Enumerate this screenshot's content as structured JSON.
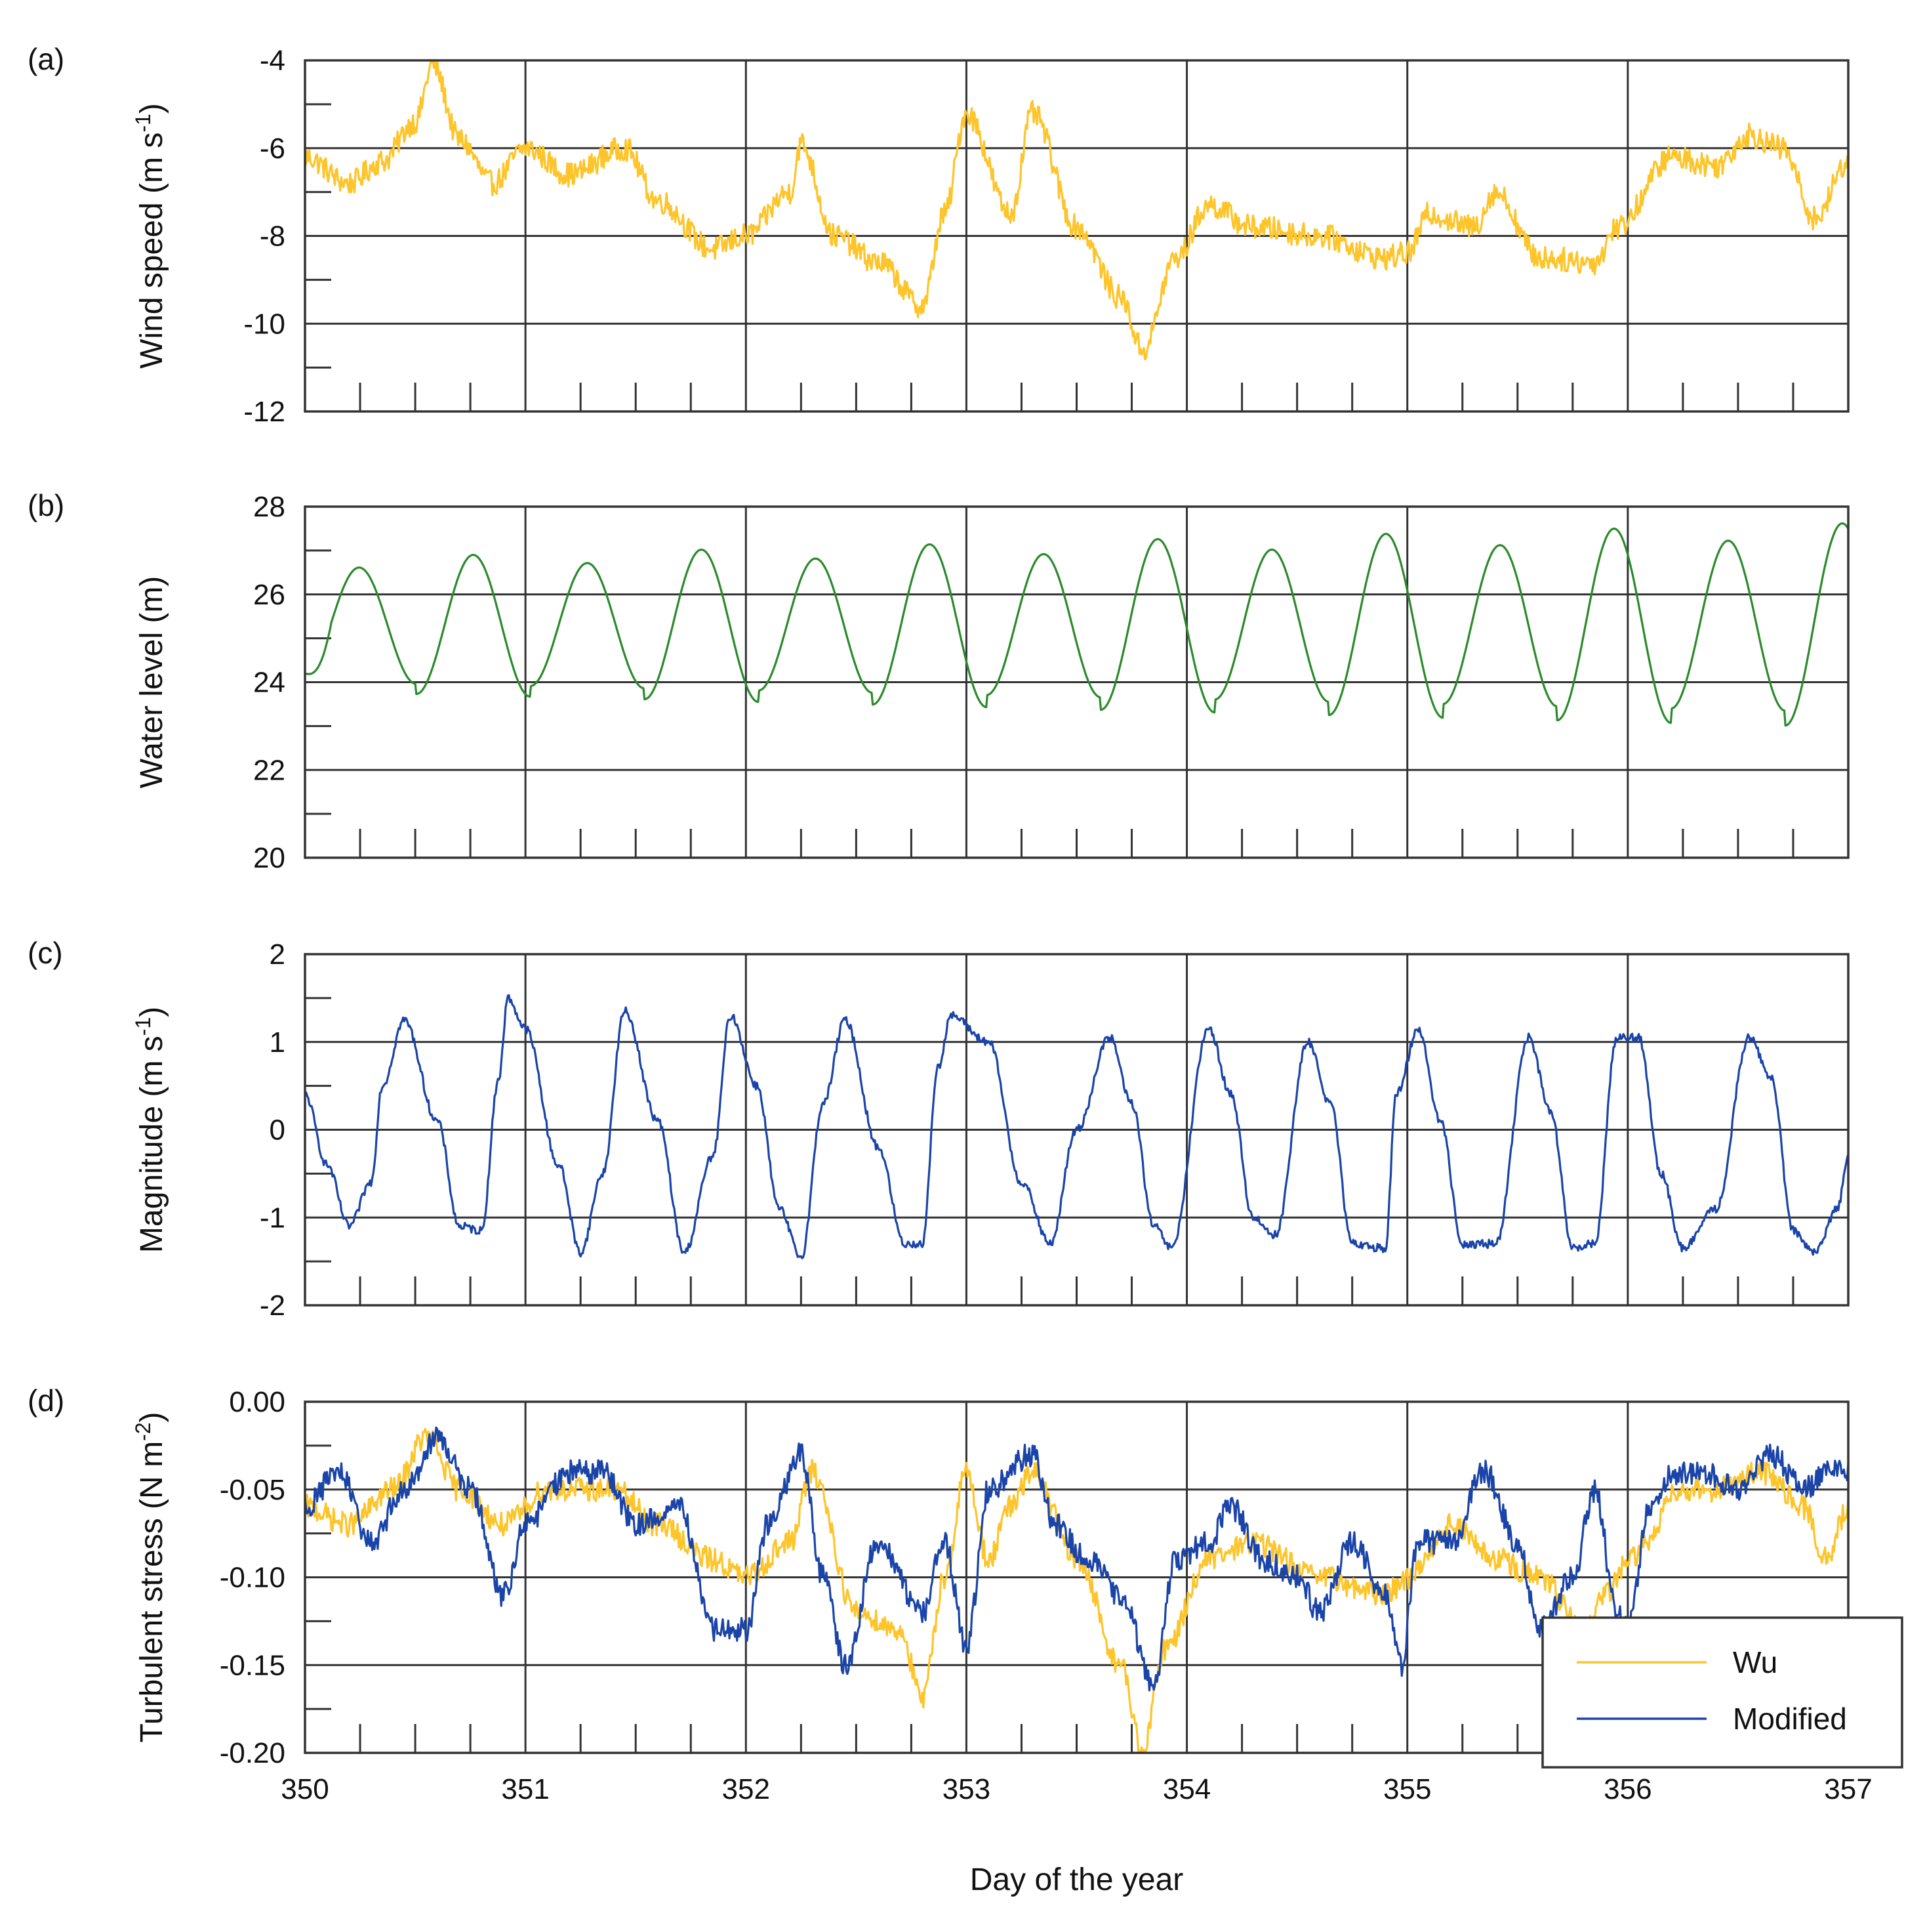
{
  "chart_data": [
    {
      "panel": "(a)",
      "type": "line",
      "ylabel_main": "Wind speed (m s",
      "ylabel_sup": "-1",
      "ylabel_end": ")",
      "ylim": [
        -12,
        -4
      ],
      "yticks": [
        -4,
        -6,
        -8,
        -10,
        -12
      ],
      "ytick_labels": [
        "-4",
        "-6",
        "-8",
        "-10",
        "-12"
      ],
      "series": [
        {
          "name": "Wind speed",
          "color": "#fdc52b",
          "x": [
            350.0,
            350.2,
            350.35,
            350.5,
            350.58,
            350.7,
            350.85,
            351.0,
            351.2,
            351.45,
            351.6,
            351.85,
            352.0,
            352.2,
            352.25,
            352.4,
            352.6,
            352.8,
            352.9,
            353.0,
            353.2,
            353.3,
            353.5,
            353.7,
            353.8,
            353.95,
            354.1,
            354.3,
            354.6,
            354.9,
            355.0,
            355.1,
            355.3,
            355.4,
            355.6,
            355.85,
            355.95,
            356.2,
            356.4,
            356.55,
            356.7,
            356.85,
            357.0
          ],
          "y": [
            -6.2,
            -6.8,
            -6.3,
            -5.4,
            -4.1,
            -5.8,
            -6.8,
            -6.0,
            -6.6,
            -6.0,
            -7.2,
            -8.3,
            -8.0,
            -7.0,
            -5.9,
            -8.0,
            -8.6,
            -9.6,
            -7.5,
            -5.2,
            -7.5,
            -5.2,
            -7.8,
            -9.4,
            -10.6,
            -8.5,
            -7.3,
            -7.8,
            -8.0,
            -8.5,
            -8.4,
            -7.5,
            -7.8,
            -7.0,
            -8.5,
            -8.6,
            -7.8,
            -6.2,
            -6.4,
            -5.7,
            -6.0,
            -7.6,
            -6.3
          ]
        }
      ]
    },
    {
      "panel": "(b)",
      "type": "line",
      "ylabel_main": "Water level (m)",
      "ylim": [
        20,
        28
      ],
      "yticks": [
        28,
        26,
        24,
        22,
        20
      ],
      "ytick_labels": [
        "28",
        "26",
        "24",
        "22",
        "20"
      ],
      "series": [
        {
          "name": "Water level",
          "color": "#2a8a2a",
          "tide": {
            "start_day": 350.0,
            "end_day": 357.0,
            "period_days": 0.5175,
            "phase_day": 350.245,
            "mean_start": 25.3,
            "mean_end": 25.3,
            "amplitude_start": 1.4,
            "amplitude_end": 2.15,
            "start_value": 24.2
          }
        }
      ]
    },
    {
      "panel": "(c)",
      "type": "line",
      "ylabel_main": "Magnitude (m s",
      "ylabel_sup": "-1",
      "ylabel_end": ")",
      "ylim": [
        -2,
        2
      ],
      "yticks": [
        2,
        1,
        0,
        -1,
        -2
      ],
      "ytick_labels": [
        "2",
        "1",
        "0",
        "-1",
        "-2"
      ],
      "series": [
        {
          "name": "Magnitude",
          "color": "#1a44a8",
          "x": [
            350.0,
            350.1,
            350.2,
            350.3,
            350.35,
            350.45,
            350.6,
            350.7,
            350.8,
            350.88,
            350.92,
            351.0,
            351.15,
            351.25,
            351.35,
            351.45,
            351.6,
            351.72,
            351.85,
            351.93,
            352.05,
            352.15,
            352.25,
            352.35,
            352.45,
            352.6,
            352.72,
            352.8,
            352.87,
            352.93,
            353.1,
            353.25,
            353.38,
            353.5,
            353.65,
            353.75,
            353.85,
            353.93,
            354.1,
            354.2,
            354.3,
            354.4,
            354.55,
            354.65,
            354.75,
            354.9,
            354.95,
            355.05,
            355.15,
            355.25,
            355.4,
            355.55,
            355.65,
            355.75,
            355.85,
            355.95,
            356.05,
            356.15,
            356.25,
            356.4,
            356.55,
            356.65,
            356.75,
            356.85,
            356.95,
            357.0
          ],
          "y": [
            0.4,
            -0.4,
            -1.1,
            -0.6,
            0.5,
            1.25,
            0.1,
            -1.1,
            -1.15,
            0.6,
            1.5,
            1.15,
            -0.4,
            -1.4,
            -0.5,
            1.35,
            0.1,
            -1.4,
            -0.3,
            1.3,
            0.5,
            -0.9,
            -1.45,
            0.3,
            1.25,
            -0.2,
            -1.3,
            -1.3,
            0.7,
            1.3,
            1.0,
            -0.6,
            -1.3,
            0.0,
            1.05,
            0.3,
            -1.1,
            -1.35,
            1.15,
            0.4,
            -1.0,
            -1.2,
            1.0,
            0.3,
            -1.3,
            -1.35,
            0.4,
            1.15,
            0.1,
            -1.3,
            -1.3,
            1.05,
            0.2,
            -1.35,
            -1.3,
            1.05,
            1.05,
            -0.5,
            -1.35,
            -0.9,
            1.05,
            0.6,
            -1.15,
            -1.4,
            -0.9,
            -0.3
          ]
        }
      ]
    },
    {
      "panel": "(d)",
      "type": "line",
      "ylabel_main": "Turbulent stress (N m",
      "ylabel_sup": "-2",
      "ylabel_end": ")",
      "ylim": [
        -0.2,
        0.0
      ],
      "yticks": [
        0.0,
        -0.05,
        -0.1,
        -0.15,
        -0.2
      ],
      "ytick_labels": [
        "0.00",
        "-0.05",
        "-0.10",
        "-0.15",
        "-0.20"
      ],
      "xlabel": "Day of the year",
      "xlim": [
        350,
        357
      ],
      "xticks": [
        350,
        351,
        352,
        353,
        354,
        355,
        356,
        357
      ],
      "xtick_labels": [
        "350",
        "351",
        "352",
        "353",
        "354",
        "355",
        "356",
        "357"
      ],
      "legend": "bottom-right",
      "series": [
        {
          "name": "Wu",
          "color": "#fdc52b",
          "x": [
            350.0,
            350.2,
            350.4,
            350.55,
            350.7,
            350.9,
            351.1,
            351.4,
            351.6,
            351.85,
            352.0,
            352.2,
            352.3,
            352.5,
            352.7,
            352.8,
            352.9,
            353.0,
            353.1,
            353.2,
            353.3,
            353.5,
            353.7,
            353.8,
            353.9,
            354.1,
            354.3,
            354.6,
            354.9,
            355.0,
            355.2,
            355.4,
            355.6,
            355.8,
            355.9,
            356.0,
            356.1,
            356.2,
            356.4,
            356.6,
            356.8,
            356.9,
            357.0
          ],
          "y": [
            -0.06,
            -0.07,
            -0.05,
            -0.02,
            -0.05,
            -0.07,
            -0.05,
            -0.05,
            -0.07,
            -0.09,
            -0.1,
            -0.08,
            -0.04,
            -0.12,
            -0.13,
            -0.17,
            -0.1,
            -0.04,
            -0.09,
            -0.06,
            -0.04,
            -0.09,
            -0.15,
            -0.2,
            -0.14,
            -0.09,
            -0.08,
            -0.1,
            -0.11,
            -0.1,
            -0.07,
            -0.09,
            -0.1,
            -0.13,
            -0.11,
            -0.09,
            -0.08,
            -0.05,
            -0.05,
            -0.04,
            -0.06,
            -0.09,
            -0.06
          ]
        },
        {
          "name": "Modified",
          "color": "#1a44a8",
          "x": [
            350.0,
            350.15,
            350.3,
            350.45,
            350.6,
            350.75,
            350.9,
            351.0,
            351.2,
            351.35,
            351.5,
            351.7,
            351.85,
            352.0,
            352.1,
            352.25,
            352.35,
            352.45,
            352.6,
            352.8,
            352.9,
            353.0,
            353.1,
            353.3,
            353.4,
            353.55,
            353.7,
            353.85,
            353.95,
            354.1,
            354.2,
            354.35,
            354.5,
            354.6,
            354.75,
            354.9,
            354.97,
            355.05,
            355.2,
            355.35,
            355.5,
            355.6,
            355.75,
            355.85,
            355.95,
            356.0,
            356.1,
            356.2,
            356.35,
            356.5,
            356.65,
            356.8,
            356.9,
            357.0
          ],
          "y": [
            -0.06,
            -0.04,
            -0.08,
            -0.05,
            -0.02,
            -0.05,
            -0.11,
            -0.07,
            -0.04,
            -0.04,
            -0.07,
            -0.06,
            -0.13,
            -0.13,
            -0.07,
            -0.03,
            -0.1,
            -0.15,
            -0.08,
            -0.12,
            -0.08,
            -0.14,
            -0.05,
            -0.03,
            -0.07,
            -0.09,
            -0.11,
            -0.16,
            -0.09,
            -0.08,
            -0.06,
            -0.09,
            -0.1,
            -0.12,
            -0.08,
            -0.11,
            -0.15,
            -0.08,
            -0.08,
            -0.04,
            -0.08,
            -0.13,
            -0.1,
            -0.05,
            -0.12,
            -0.13,
            -0.06,
            -0.04,
            -0.04,
            -0.05,
            -0.03,
            -0.05,
            -0.04,
            -0.04
          ]
        }
      ]
    }
  ]
}
